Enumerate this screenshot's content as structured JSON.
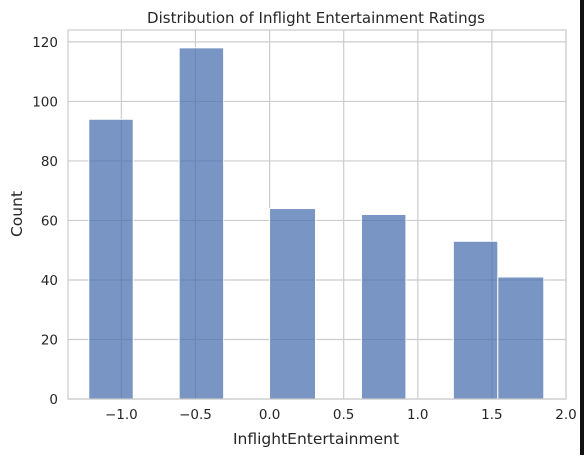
{
  "chart_data": {
    "type": "bar",
    "title": "Distribution of Inflight Entertainment Ratings",
    "xlabel": "InflightEntertainment",
    "ylabel": "Count",
    "xlim": [
      -1.36,
      2.0
    ],
    "ylim": [
      0,
      124
    ],
    "xticks": [
      -1.0,
      -0.5,
      0.0,
      0.5,
      1.0,
      1.5,
      2.0
    ],
    "xtick_labels": [
      "−1.0",
      "−0.5",
      "0.0",
      "0.5",
      "1.0",
      "1.5",
      "2.0"
    ],
    "yticks": [
      0,
      20,
      40,
      60,
      80,
      100,
      120
    ],
    "ytick_labels": [
      "0",
      "20",
      "40",
      "60",
      "80",
      "100",
      "120"
    ],
    "grid": true,
    "bins": [
      {
        "x0": -1.22,
        "x1": -0.92,
        "count": 94
      },
      {
        "x0": -0.61,
        "x1": -0.31,
        "count": 118
      },
      {
        "x0": 0.0,
        "x1": 0.31,
        "count": 64
      },
      {
        "x0": 0.62,
        "x1": 0.92,
        "count": 62
      },
      {
        "x0": 1.24,
        "x1": 1.54,
        "count": 53
      },
      {
        "x0": 1.54,
        "x1": 1.85,
        "count": 41
      }
    ],
    "bar_color": "#4c72b0"
  }
}
